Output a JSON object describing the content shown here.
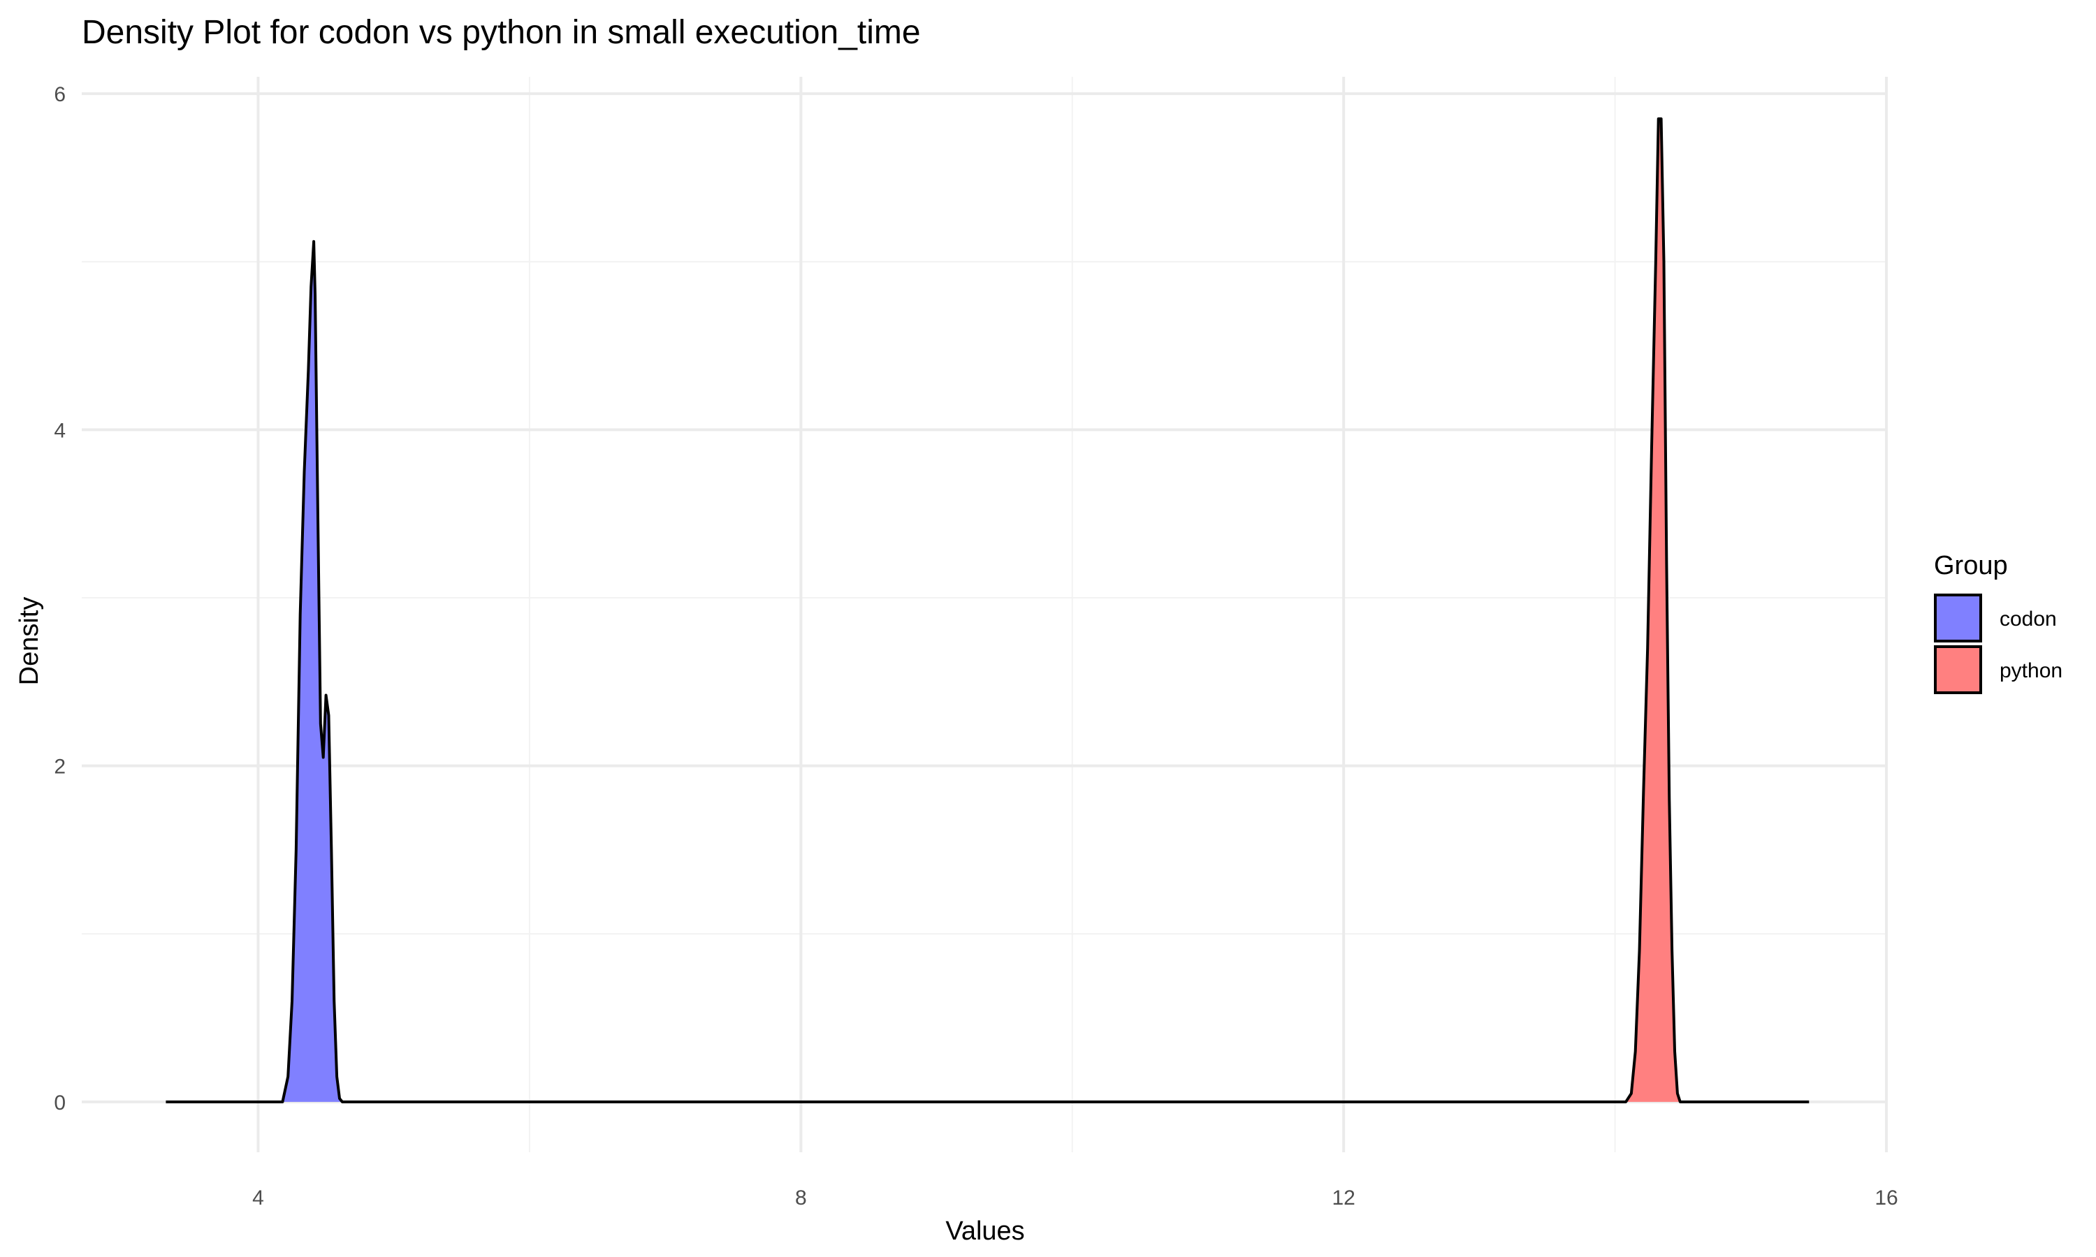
{
  "chart_data": {
    "type": "area",
    "title": "Density Plot for codon vs python in small execution_time",
    "xlabel": "Values",
    "ylabel": "Density",
    "xlim": [
      2.7,
      16.0
    ],
    "ylim": [
      -0.3,
      6.1
    ],
    "xticks": [
      4,
      8,
      12,
      16
    ],
    "xtick_labels": [
      "4",
      "8",
      "12",
      "16"
    ],
    "yticks": [
      0,
      2,
      4,
      6
    ],
    "ytick_labels": [
      "0",
      "2",
      "4",
      "6"
    ],
    "x_minor": [
      6,
      10,
      14
    ],
    "y_minor": [
      1,
      3,
      5
    ],
    "grid": true,
    "baseline_range": [
      3.32,
      15.43
    ],
    "legend": {
      "title": "Group",
      "position": "right"
    },
    "series": [
      {
        "name": "codon",
        "color": "#8080ff",
        "x": [
          4.18,
          4.22,
          4.25,
          4.28,
          4.31,
          4.34,
          4.37,
          4.39,
          4.41,
          4.42,
          4.44,
          4.46,
          4.48,
          4.5,
          4.52,
          4.54,
          4.56,
          4.58,
          4.6,
          4.62,
          4.64
        ],
        "y": [
          0,
          0.15,
          0.6,
          1.5,
          2.9,
          3.75,
          4.35,
          4.85,
          5.12,
          4.8,
          3.5,
          2.25,
          2.05,
          2.42,
          2.3,
          1.5,
          0.6,
          0.15,
          0.02,
          0,
          0
        ]
      },
      {
        "name": "python",
        "color": "#ff8080",
        "x": [
          14.08,
          14.12,
          14.15,
          14.18,
          14.21,
          14.24,
          14.27,
          14.3,
          14.32,
          14.34,
          14.36,
          14.38,
          14.4,
          14.42,
          14.44,
          14.46,
          14.48,
          14.51,
          14.54,
          14.56
        ],
        "y": [
          0,
          0.05,
          0.3,
          0.9,
          1.85,
          2.7,
          3.9,
          5.0,
          5.85,
          5.85,
          5.0,
          3.2,
          1.8,
          0.9,
          0.3,
          0.05,
          0,
          0,
          0,
          0
        ]
      }
    ]
  }
}
